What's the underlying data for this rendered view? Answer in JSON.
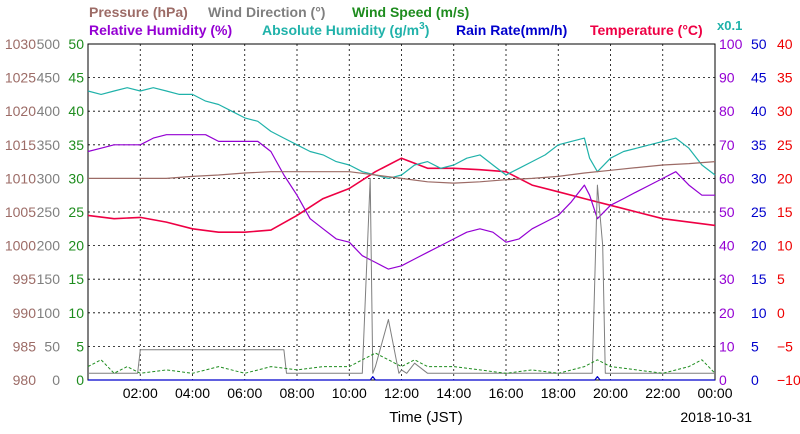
{
  "chart_data": {
    "type": "line",
    "date": "2018-10-31",
    "xlabel": "Time (JST)",
    "x_ticks": [
      "02:00",
      "04:00",
      "06:00",
      "08:00",
      "10:00",
      "12:00",
      "14:00",
      "16:00",
      "18:00",
      "20:00",
      "22:00",
      "00:00"
    ],
    "grid": true,
    "legend_placement": "top",
    "axes": {
      "pressure": {
        "ticks": [
          "980",
          "985",
          "990",
          "995",
          "1000",
          "1005",
          "1010",
          "1015",
          "1020",
          "1025",
          "1030"
        ],
        "range": [
          980,
          1030
        ],
        "color": "#9c6b66"
      },
      "direction": {
        "ticks": [
          "0",
          "50",
          "100",
          "150",
          "200",
          "250",
          "300",
          "350",
          "400",
          "450",
          "500"
        ],
        "range": [
          0,
          500
        ],
        "color": "#7f7f7f"
      },
      "speed": {
        "ticks": [
          "0",
          "5",
          "10",
          "15",
          "20",
          "25",
          "30",
          "35",
          "40",
          "45",
          "50"
        ],
        "range": [
          0,
          50
        ],
        "color": "#1e8c1e"
      },
      "humidity": {
        "ticks": [
          "0",
          "10",
          "20",
          "30",
          "40",
          "50",
          "60",
          "70",
          "80",
          "90",
          "100"
        ],
        "range": [
          0,
          100
        ],
        "color": "#9400d3"
      },
      "rain": {
        "ticks": [
          "0",
          "5",
          "10",
          "15",
          "20",
          "25",
          "30",
          "35",
          "40",
          "45",
          "50"
        ],
        "range": [
          0,
          50
        ],
        "color": "#0000cc"
      },
      "temperature": {
        "ticks": [
          "−10",
          "−5",
          "0",
          "5",
          "10",
          "15",
          "20",
          "25",
          "30",
          "35",
          "40"
        ],
        "range": [
          -10,
          40
        ],
        "color": "#ee0000"
      }
    },
    "abs_humidity_multiplier": "x0.1",
    "legend": {
      "pressure": "Pressure (hPa)",
      "direction": "Wind Direction (°)",
      "speed": "Wind Speed (m/s)",
      "humidity": "Relative Humidity (%)",
      "abs_humidity_prefix": "Absolute Humidity (g/m",
      "abs_humidity_sup": "3",
      "abs_humidity_suffix": ")",
      "rain": "Rain Rate(mm/h)",
      "temperature": "Temperature (°C)"
    },
    "colors": {
      "pressure": "#9c6b66",
      "direction": "#7f7f7f",
      "speed": "#1e8c1e",
      "humidity": "#9400d3",
      "abs_humidity": "#20b2aa",
      "rain": "#0000cc",
      "temperature": "#ee0044"
    },
    "series": [
      {
        "key": "temperature",
        "unit": "°C",
        "x": [
          0,
          1,
          2,
          3,
          4,
          5,
          6,
          7,
          8,
          9,
          10,
          11,
          12,
          13,
          14,
          15,
          16,
          17,
          18,
          19,
          20,
          21,
          22,
          23,
          24
        ],
        "values": [
          14.5,
          14,
          14.2,
          13.5,
          12.5,
          12,
          12,
          12.3,
          14.5,
          17,
          18.5,
          21,
          23,
          21.5,
          21.5,
          21.3,
          21,
          19,
          18,
          17,
          16,
          15,
          14,
          13.5,
          13
        ]
      },
      {
        "key": "humidity",
        "unit": "%",
        "x": [
          0,
          0.5,
          1,
          1.5,
          2,
          2.5,
          3,
          3.5,
          4,
          4.5,
          5,
          5.5,
          6,
          6.5,
          7,
          7.5,
          8,
          8.5,
          9,
          9.5,
          10,
          10.5,
          11,
          11.5,
          12,
          12.5,
          13,
          13.5,
          14,
          14.5,
          15,
          15.5,
          16,
          16.5,
          17,
          17.5,
          18,
          18.5,
          19,
          19.2,
          19.5,
          20,
          20.5,
          21,
          21.5,
          22,
          22.5,
          23,
          23.5,
          24
        ],
        "values": [
          68,
          69,
          70,
          70,
          70,
          72,
          73,
          73,
          73,
          73,
          71,
          71,
          71,
          71,
          68,
          61,
          55,
          48,
          45,
          42,
          41,
          37,
          35,
          33,
          34,
          36,
          38,
          40,
          42,
          44,
          45,
          44,
          41,
          42,
          45,
          47,
          49,
          53,
          58,
          55,
          48,
          52,
          54,
          56,
          58,
          60,
          62,
          58,
          55,
          55
        ]
      },
      {
        "key": "abs_humidity",
        "unit": "g/m³ ×0.1",
        "x": [
          0,
          0.5,
          1,
          1.5,
          2,
          2.5,
          3,
          3.5,
          4,
          4.5,
          5,
          5.5,
          6,
          6.5,
          7,
          7.5,
          8,
          8.5,
          9,
          9.5,
          10,
          10.5,
          11,
          11.5,
          12,
          12.5,
          13,
          13.5,
          14,
          14.5,
          15,
          15.5,
          16,
          16.5,
          17,
          17.5,
          18,
          18.5,
          19,
          19.2,
          19.5,
          20,
          20.5,
          21,
          21.5,
          22,
          22.5,
          23,
          23.5,
          24
        ],
        "values": [
          86,
          85,
          86,
          87,
          86,
          87,
          86,
          85,
          85,
          83,
          82,
          80,
          78,
          77,
          74,
          72,
          70,
          68,
          67,
          65,
          64,
          62,
          61,
          60,
          61,
          64,
          65,
          63,
          64,
          66,
          67,
          64,
          61,
          63,
          65,
          67,
          70,
          71,
          72,
          66,
          62,
          66,
          68,
          69,
          70,
          71,
          72,
          69,
          64,
          61
        ]
      },
      {
        "key": "pressure",
        "unit": "hPa",
        "x": [
          0,
          1,
          2,
          3,
          4,
          5,
          6,
          7,
          8,
          9,
          10,
          11,
          12,
          13,
          14,
          15,
          16,
          17,
          18,
          19,
          20,
          21,
          22,
          23,
          24
        ],
        "values": [
          1010,
          1010,
          1010,
          1010,
          1010.3,
          1010.5,
          1010.8,
          1011,
          1011,
          1011,
          1011,
          1010.5,
          1010,
          1009.5,
          1009.3,
          1009.5,
          1009.8,
          1010,
          1010.3,
          1010.8,
          1011.2,
          1011.6,
          1012,
          1012.2,
          1012.5
        ]
      },
      {
        "key": "direction",
        "unit": "°",
        "x": [
          0,
          1.9,
          2,
          7.5,
          7.6,
          10,
          10.5,
          10.8,
          10.9,
          11,
          11.5,
          11.9,
          12,
          12.2,
          12.5,
          13,
          19,
          19.3,
          19.5,
          19.7,
          19.8,
          20,
          24
        ],
        "values": [
          10,
          10,
          45,
          45,
          10,
          10,
          10,
          300,
          10,
          20,
          90,
          10,
          15,
          10,
          25,
          10,
          10,
          10,
          290,
          200,
          10,
          10,
          10
        ]
      },
      {
        "key": "speed",
        "unit": "m/s",
        "x": [
          0,
          0.5,
          1,
          1.5,
          2,
          3,
          4,
          5,
          6,
          7,
          8,
          9,
          10,
          10.5,
          11,
          11.5,
          12,
          12.5,
          13,
          14,
          15,
          16,
          17,
          18,
          19,
          19.5,
          20,
          21,
          22,
          23,
          23.5,
          24
        ],
        "values": [
          2,
          3,
          1,
          2,
          1,
          1.5,
          1,
          2,
          1,
          2,
          1.5,
          2,
          2,
          3,
          4,
          3,
          2,
          3,
          2,
          2,
          1.5,
          1,
          1.5,
          1,
          2,
          3,
          2,
          1.5,
          1,
          2,
          3,
          1
        ]
      },
      {
        "key": "rain",
        "unit": "mm/h",
        "x": [
          0,
          10.8,
          10.9,
          11,
          19.4,
          19.5,
          19.6,
          24
        ],
        "values": [
          0,
          0,
          0.5,
          0,
          0,
          0.5,
          0,
          0
        ]
      }
    ]
  }
}
